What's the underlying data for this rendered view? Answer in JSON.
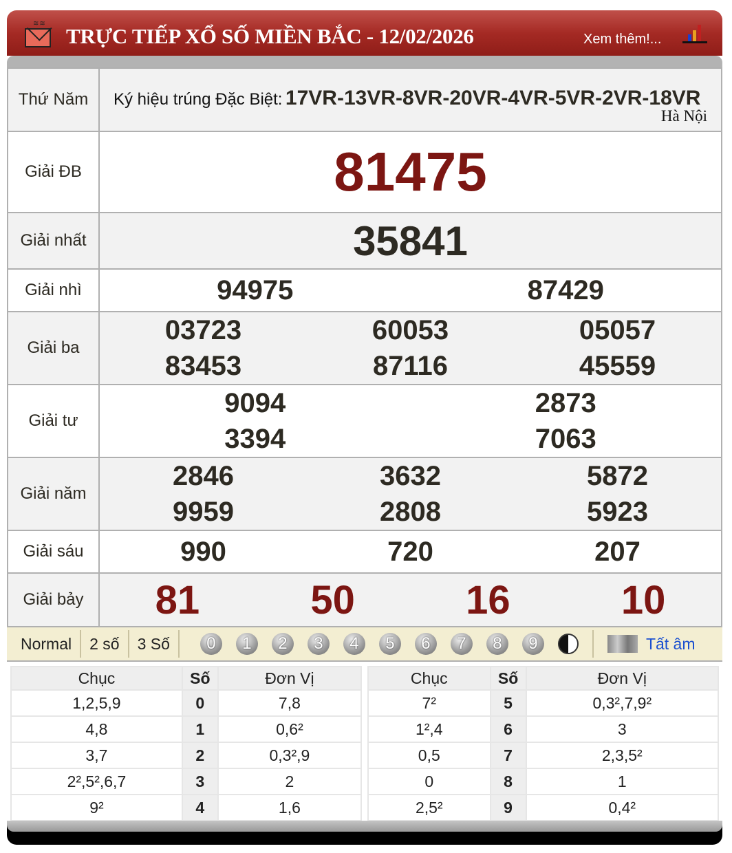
{
  "header": {
    "title": "TRỰC TIẾP XỔ SỐ MIỀN BẮC - 12/02/2026",
    "more_link": "Xem thêm!..."
  },
  "info": {
    "day": "Thứ Năm",
    "symbol_label": "Ký hiệu trúng Đặc Biệt:",
    "symbol_value": "17VR-13VR-8VR-20VR-4VR-5VR-2VR-18VR",
    "location": "Hà Nội"
  },
  "prizes": [
    {
      "label": "Giải ĐB",
      "numbers": [
        "81475"
      ]
    },
    {
      "label": "Giải nhất",
      "numbers": [
        "35841"
      ]
    },
    {
      "label": "Giải nhì",
      "numbers": [
        "94975",
        "87429"
      ]
    },
    {
      "label": "Giải ba",
      "numbers": [
        "03723",
        "60053",
        "05057",
        "83453",
        "87116",
        "45559"
      ]
    },
    {
      "label": "Giải tư",
      "numbers": [
        "9094",
        "2873",
        "3394",
        "7063"
      ]
    },
    {
      "label": "Giải năm",
      "numbers": [
        "2846",
        "3632",
        "5872",
        "9959",
        "2808",
        "5923"
      ]
    },
    {
      "label": "Giải sáu",
      "numbers": [
        "990",
        "720",
        "207"
      ]
    },
    {
      "label": "Giải bảy",
      "numbers": [
        "81",
        "50",
        "16",
        "10"
      ]
    }
  ],
  "toolbar": {
    "options": [
      "Normal",
      "2 số",
      "3 Số"
    ],
    "digits": [
      "0",
      "1",
      "2",
      "3",
      "4",
      "5",
      "6",
      "7",
      "8",
      "9"
    ],
    "mute_label": "Tất âm"
  },
  "loto": {
    "headers": [
      "Chục",
      "Số",
      "Đơn Vị"
    ],
    "rows": [
      [
        "1,2,5,9",
        "0",
        "7,8"
      ],
      [
        "4,8",
        "1",
        "0,6²"
      ],
      [
        "3,7",
        "2",
        "0,3²,9"
      ],
      [
        "2²,5²,6,7",
        "3",
        "2"
      ],
      [
        "9²",
        "4",
        "1,6"
      ],
      [
        "7²",
        "5",
        "0,3²,7,9²"
      ],
      [
        "1²,4",
        "6",
        "3"
      ],
      [
        "0,5",
        "7",
        "2,3,5²"
      ],
      [
        "0",
        "8",
        "1"
      ],
      [
        "2,5²",
        "9",
        "0,4²"
      ]
    ]
  },
  "colors": {
    "header": "#a52a24",
    "special": "#7c1612",
    "link": "#1a4fd0"
  }
}
